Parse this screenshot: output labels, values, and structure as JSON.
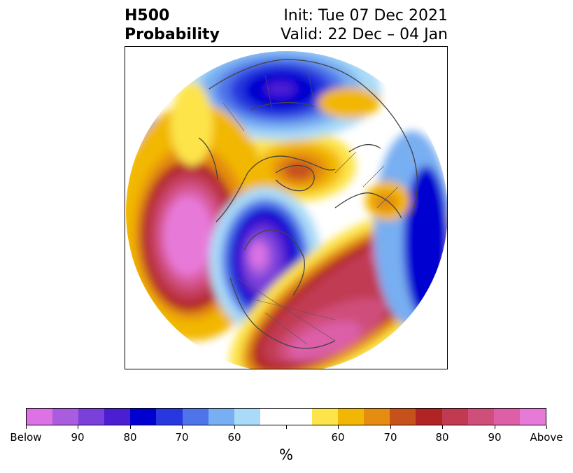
{
  "title": {
    "left_line1": "H500",
    "left_line2": "Probability",
    "right_line1": "Init: Tue 07 Dec 2021",
    "right_line2": "Valid: 22 Dec – 04 Jan"
  },
  "colorbar": {
    "unit_label": "%",
    "colors": [
      "#dc72e4",
      "#a95cde",
      "#7a40d9",
      "#4c1ed2",
      "#0000d0",
      "#2838de",
      "#4f73e8",
      "#78aef2",
      "#a9daf8",
      "#ffffff",
      "#ffffff",
      "#fde44a",
      "#f2b705",
      "#e48d10",
      "#c7511a",
      "#b12424",
      "#c13a52",
      "#cf4e7a",
      "#dc5fa8",
      "#e77ad9"
    ],
    "tick_labels": [
      "Below",
      "90",
      "80",
      "70",
      "60",
      "",
      "60",
      "70",
      "80",
      "90",
      "Above"
    ]
  },
  "map": {
    "projection": "north-polar-stereographic",
    "variable": "500 hPa height probability",
    "features": [
      {
        "name": "north-pacific-above",
        "category": "Above"
      },
      {
        "name": "hudson-bay-below",
        "category": "Below"
      },
      {
        "name": "siberia-below",
        "category": "Below"
      },
      {
        "name": "eastern-us-atlantic-above",
        "category": "Above"
      },
      {
        "name": "europe-above",
        "category": "Above"
      },
      {
        "name": "arctic-above",
        "category": "Above"
      }
    ]
  }
}
